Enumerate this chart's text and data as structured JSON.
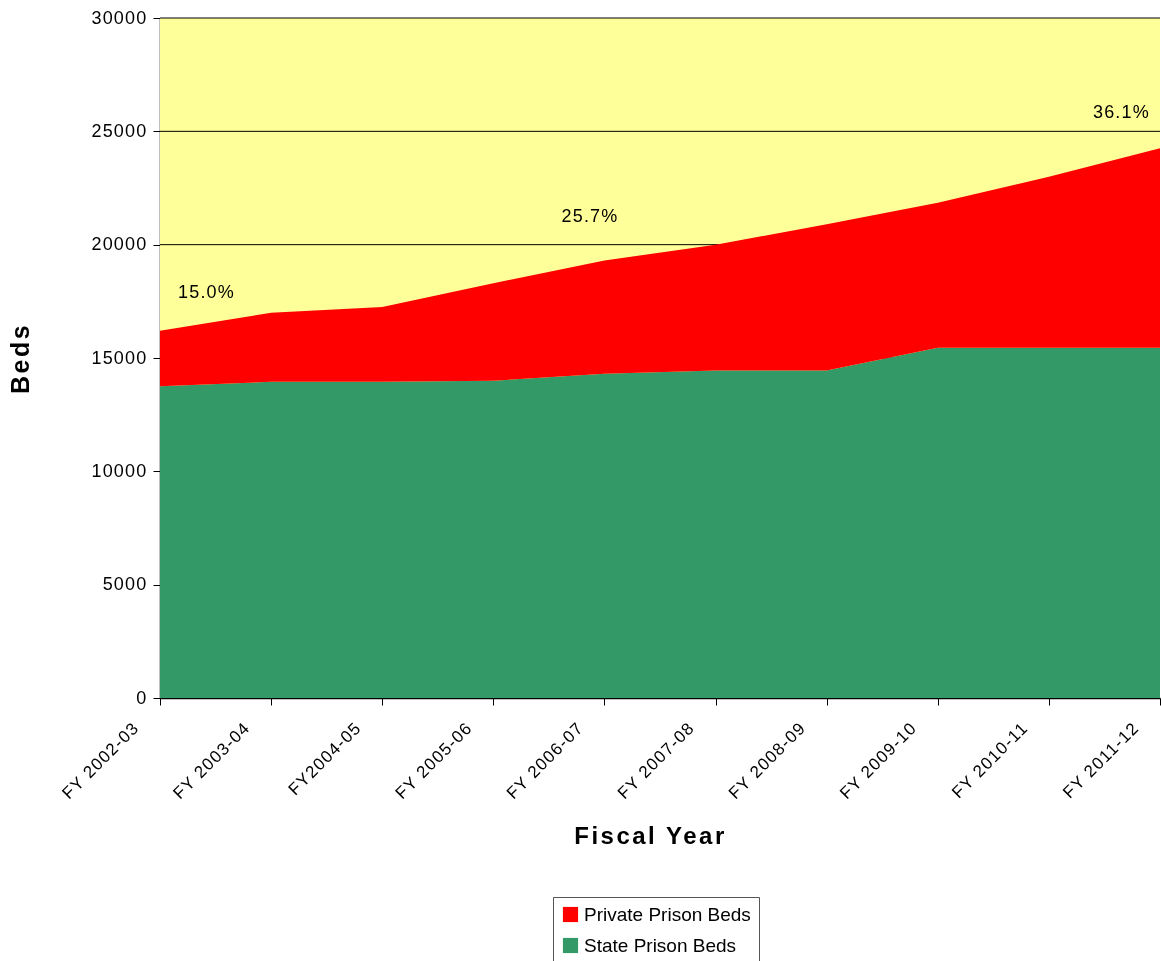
{
  "chart_data": {
    "type": "area",
    "stacked": true,
    "ylabel": "Beds",
    "xlabel": "Fiscal Year",
    "categories": [
      "FY 2002-03",
      "FY 2003-04",
      "FY2004-05",
      "FY 2005-06",
      "FY 2006-07",
      "FY 2007-08",
      "FY 2008-09",
      "FY 2009-10",
      "FY 2010-11",
      "FY 2011-12"
    ],
    "series": [
      {
        "name": "State Prison Beds",
        "color": "#339966",
        "values": [
          13750,
          13950,
          13950,
          14000,
          14300,
          14450,
          14450,
          15450,
          15450,
          15450
        ]
      },
      {
        "name": "Private Prison Beds",
        "color": "#ff0000",
        "values": [
          2450,
          3050,
          3300,
          4300,
          5000,
          5550,
          6450,
          6400,
          7550,
          8800
        ]
      }
    ],
    "ylim": [
      0,
      30000
    ],
    "yticks": [
      0,
      5000,
      10000,
      15000,
      20000,
      25000,
      30000
    ],
    "grid": "y",
    "legend": "bottom",
    "bands": [
      {
        "axis": "x",
        "from": "FY 2002-03",
        "to": "FY 2011-12",
        "color": "#ffff99"
      }
    ],
    "annotations": [
      "15.0%",
      "25.7%",
      "36.1%"
    ]
  }
}
